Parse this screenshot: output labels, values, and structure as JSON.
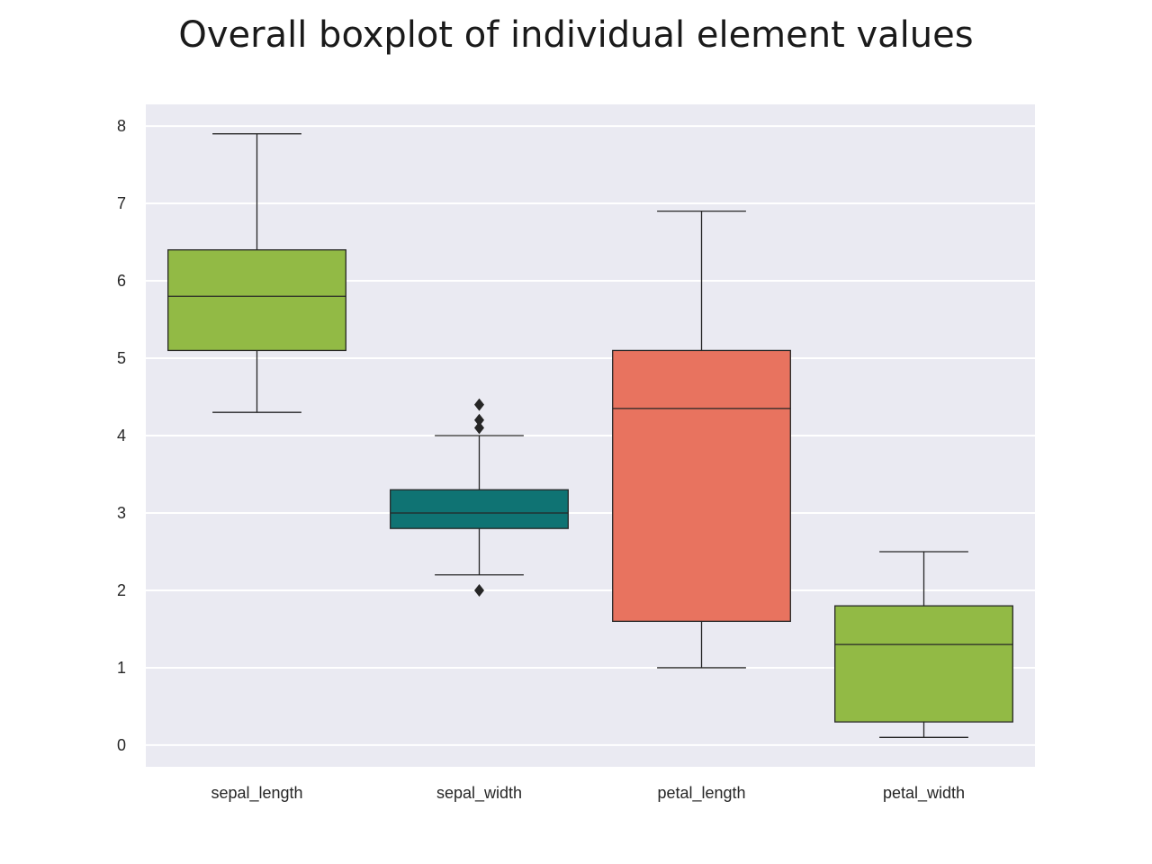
{
  "chart_data": {
    "type": "boxplot",
    "title": "Overall boxplot of individual element values",
    "xlabel": "",
    "ylabel": "",
    "ylim": [
      -0.28,
      8.28
    ],
    "yticks": [
      0,
      1,
      2,
      3,
      4,
      5,
      6,
      7,
      8
    ],
    "grid": true,
    "categories": [
      "sepal_length",
      "sepal_width",
      "petal_length",
      "petal_width"
    ],
    "boxes": [
      {
        "category": "sepal_length",
        "whisker_low": 4.3,
        "q1": 5.1,
        "median": 5.8,
        "q3": 6.4,
        "whisker_high": 7.9,
        "outliers": [],
        "color": "#92ba45"
      },
      {
        "category": "sepal_width",
        "whisker_low": 2.2,
        "q1": 2.8,
        "median": 3.0,
        "q3": 3.3,
        "whisker_high": 4.0,
        "outliers": [
          4.4,
          4.1,
          4.2,
          2.0
        ],
        "color": "#0f7373"
      },
      {
        "category": "petal_length",
        "whisker_low": 1.0,
        "q1": 1.6,
        "median": 4.35,
        "q3": 5.1,
        "whisker_high": 6.9,
        "outliers": [],
        "color": "#e8735f"
      },
      {
        "category": "petal_width",
        "whisker_low": 0.1,
        "q1": 0.3,
        "median": 1.3,
        "q3": 1.8,
        "whisker_high": 2.5,
        "outliers": [],
        "color": "#92ba45"
      }
    ]
  },
  "colors": {
    "plot_background": "#eaeaf2",
    "grid": "#ffffff",
    "lines": "#262626"
  }
}
